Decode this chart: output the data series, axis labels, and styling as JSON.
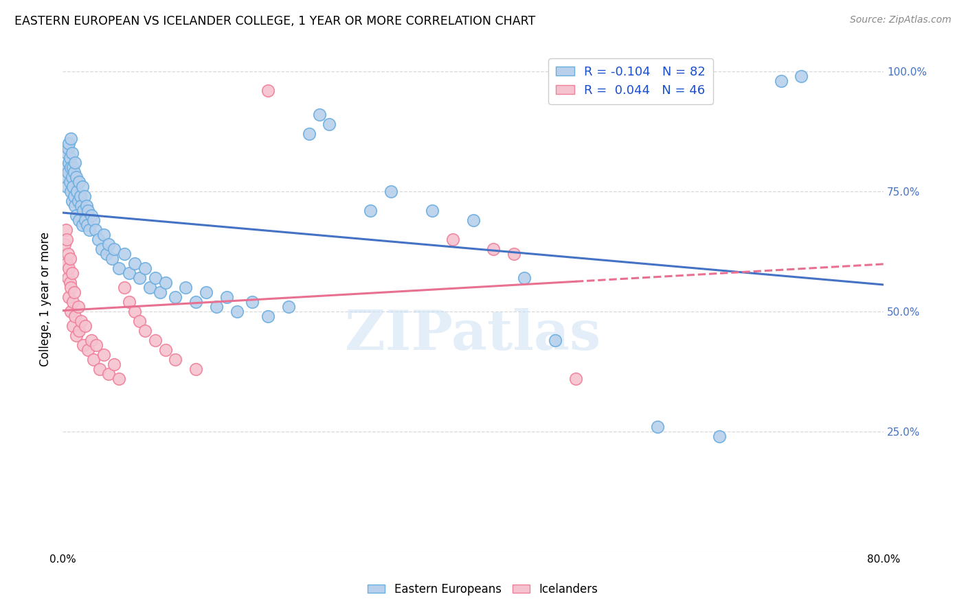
{
  "title": "EASTERN EUROPEAN VS ICELANDER COLLEGE, 1 YEAR OR MORE CORRELATION CHART",
  "source": "Source: ZipAtlas.com",
  "ylabel": "College, 1 year or more",
  "blue_R": "-0.104",
  "blue_N": "82",
  "pink_R": "0.044",
  "pink_N": "46",
  "legend_label_blue": "Eastern Europeans",
  "legend_label_pink": "Icelanders",
  "xlim": [
    0.0,
    0.8
  ],
  "ylim": [
    0.0,
    1.05
  ],
  "background_color": "#ffffff",
  "grid_color": "#d8d8d8",
  "blue_color": "#b8d0ec",
  "blue_edge_color": "#6aaee0",
  "blue_line_color": "#4472c4",
  "pink_color": "#f5c2d0",
  "pink_edge_color": "#f08099",
  "pink_line_color": "#e87090",
  "blue_scatter": [
    [
      0.002,
      0.78
    ],
    [
      0.003,
      0.8
    ],
    [
      0.004,
      0.83
    ],
    [
      0.004,
      0.76
    ],
    [
      0.005,
      0.84
    ],
    [
      0.005,
      0.79
    ],
    [
      0.006,
      0.85
    ],
    [
      0.006,
      0.81
    ],
    [
      0.007,
      0.82
    ],
    [
      0.007,
      0.77
    ],
    [
      0.008,
      0.86
    ],
    [
      0.008,
      0.8
    ],
    [
      0.008,
      0.75
    ],
    [
      0.009,
      0.83
    ],
    [
      0.009,
      0.78
    ],
    [
      0.009,
      0.73
    ],
    [
      0.01,
      0.8
    ],
    [
      0.01,
      0.76
    ],
    [
      0.011,
      0.79
    ],
    [
      0.011,
      0.74
    ],
    [
      0.012,
      0.81
    ],
    [
      0.012,
      0.72
    ],
    [
      0.013,
      0.78
    ],
    [
      0.013,
      0.7
    ],
    [
      0.014,
      0.75
    ],
    [
      0.015,
      0.73
    ],
    [
      0.016,
      0.77
    ],
    [
      0.016,
      0.69
    ],
    [
      0.017,
      0.74
    ],
    [
      0.018,
      0.72
    ],
    [
      0.019,
      0.76
    ],
    [
      0.019,
      0.68
    ],
    [
      0.02,
      0.71
    ],
    [
      0.021,
      0.74
    ],
    [
      0.022,
      0.69
    ],
    [
      0.023,
      0.72
    ],
    [
      0.024,
      0.68
    ],
    [
      0.025,
      0.71
    ],
    [
      0.026,
      0.67
    ],
    [
      0.028,
      0.7
    ],
    [
      0.03,
      0.69
    ],
    [
      0.032,
      0.67
    ],
    [
      0.035,
      0.65
    ],
    [
      0.038,
      0.63
    ],
    [
      0.04,
      0.66
    ],
    [
      0.043,
      0.62
    ],
    [
      0.045,
      0.64
    ],
    [
      0.048,
      0.61
    ],
    [
      0.05,
      0.63
    ],
    [
      0.055,
      0.59
    ],
    [
      0.06,
      0.62
    ],
    [
      0.065,
      0.58
    ],
    [
      0.07,
      0.6
    ],
    [
      0.075,
      0.57
    ],
    [
      0.08,
      0.59
    ],
    [
      0.085,
      0.55
    ],
    [
      0.09,
      0.57
    ],
    [
      0.095,
      0.54
    ],
    [
      0.1,
      0.56
    ],
    [
      0.11,
      0.53
    ],
    [
      0.12,
      0.55
    ],
    [
      0.13,
      0.52
    ],
    [
      0.14,
      0.54
    ],
    [
      0.15,
      0.51
    ],
    [
      0.16,
      0.53
    ],
    [
      0.17,
      0.5
    ],
    [
      0.185,
      0.52
    ],
    [
      0.2,
      0.49
    ],
    [
      0.22,
      0.51
    ],
    [
      0.24,
      0.87
    ],
    [
      0.25,
      0.91
    ],
    [
      0.26,
      0.89
    ],
    [
      0.3,
      0.71
    ],
    [
      0.32,
      0.75
    ],
    [
      0.36,
      0.71
    ],
    [
      0.4,
      0.69
    ],
    [
      0.45,
      0.57
    ],
    [
      0.48,
      0.44
    ],
    [
      0.58,
      0.26
    ],
    [
      0.64,
      0.24
    ],
    [
      0.7,
      0.98
    ],
    [
      0.72,
      0.99
    ]
  ],
  "pink_scatter": [
    [
      0.002,
      0.64
    ],
    [
      0.003,
      0.67
    ],
    [
      0.004,
      0.6
    ],
    [
      0.004,
      0.65
    ],
    [
      0.005,
      0.62
    ],
    [
      0.005,
      0.57
    ],
    [
      0.006,
      0.59
    ],
    [
      0.006,
      0.53
    ],
    [
      0.007,
      0.56
    ],
    [
      0.007,
      0.61
    ],
    [
      0.008,
      0.55
    ],
    [
      0.008,
      0.5
    ],
    [
      0.009,
      0.58
    ],
    [
      0.01,
      0.52
    ],
    [
      0.01,
      0.47
    ],
    [
      0.011,
      0.54
    ],
    [
      0.012,
      0.49
    ],
    [
      0.013,
      0.45
    ],
    [
      0.015,
      0.51
    ],
    [
      0.016,
      0.46
    ],
    [
      0.018,
      0.48
    ],
    [
      0.02,
      0.43
    ],
    [
      0.022,
      0.47
    ],
    [
      0.025,
      0.42
    ],
    [
      0.028,
      0.44
    ],
    [
      0.03,
      0.4
    ],
    [
      0.033,
      0.43
    ],
    [
      0.036,
      0.38
    ],
    [
      0.04,
      0.41
    ],
    [
      0.045,
      0.37
    ],
    [
      0.05,
      0.39
    ],
    [
      0.055,
      0.36
    ],
    [
      0.06,
      0.55
    ],
    [
      0.065,
      0.52
    ],
    [
      0.07,
      0.5
    ],
    [
      0.075,
      0.48
    ],
    [
      0.08,
      0.46
    ],
    [
      0.09,
      0.44
    ],
    [
      0.1,
      0.42
    ],
    [
      0.11,
      0.4
    ],
    [
      0.13,
      0.38
    ],
    [
      0.2,
      0.96
    ],
    [
      0.38,
      0.65
    ],
    [
      0.42,
      0.63
    ],
    [
      0.44,
      0.62
    ],
    [
      0.5,
      0.36
    ]
  ]
}
